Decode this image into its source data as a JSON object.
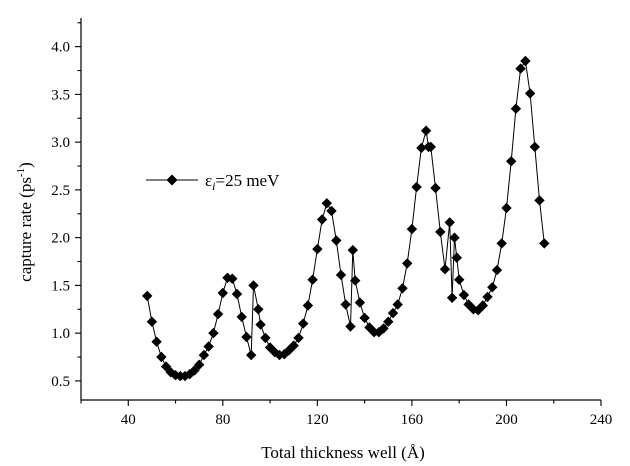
{
  "chart_data": {
    "type": "line",
    "title": "",
    "xlabel": "Total thickness well (Å)",
    "ylabel": "capture rate (ps",
    "ylabel_sup": "-1",
    "ylabel_close": ")",
    "xlim": [
      20,
      240
    ],
    "ylim": [
      0.3,
      4.3
    ],
    "xticks": [
      40,
      80,
      120,
      160,
      200,
      240
    ],
    "yticks": [
      0.5,
      1.0,
      1.5,
      2.0,
      2.5,
      3.0,
      3.5,
      4.0
    ],
    "xtick_labels": [
      "40",
      "80",
      "120",
      "160",
      "200",
      "240"
    ],
    "ytick_labels": [
      "0.5",
      "1.0",
      "1.5",
      "2.0",
      "2.5",
      "3.0",
      "3.5",
      "4.0"
    ],
    "grid": false,
    "legend_position": "left",
    "marker": "diamond",
    "color": "#000000",
    "series": [
      {
        "name": "ε_i=25 meV",
        "legend_symbol": "ε",
        "legend_subscript": "i",
        "legend_rest": "=25 meV",
        "x": [
          48,
          50,
          52,
          54,
          56,
          58,
          60,
          62,
          64,
          66,
          68,
          70,
          72,
          74,
          76,
          78,
          80,
          82,
          84,
          86,
          88,
          90,
          92,
          93,
          95,
          96,
          98,
          100,
          102,
          104,
          106,
          108,
          110,
          112,
          114,
          116,
          118,
          120,
          122,
          124,
          126,
          128,
          130,
          132,
          134,
          135,
          136,
          138,
          140,
          142,
          144,
          146,
          148,
          150,
          152,
          154,
          156,
          158,
          160,
          162,
          164,
          166,
          167,
          168,
          170,
          172,
          174,
          176,
          177,
          178,
          179,
          180,
          182,
          184,
          186,
          188,
          190,
          192,
          194,
          196,
          198,
          200,
          202,
          204,
          206,
          208,
          210,
          212,
          214,
          216
        ],
        "y": [
          1.39,
          1.12,
          0.91,
          0.75,
          0.65,
          0.59,
          0.56,
          0.55,
          0.55,
          0.57,
          0.61,
          0.67,
          0.77,
          0.86,
          1.0,
          1.2,
          1.42,
          1.58,
          1.57,
          1.41,
          1.17,
          0.96,
          0.77,
          1.5,
          1.25,
          1.09,
          0.95,
          0.85,
          0.8,
          0.77,
          0.78,
          0.82,
          0.87,
          0.95,
          1.1,
          1.29,
          1.56,
          1.88,
          2.19,
          2.36,
          2.28,
          1.97,
          1.61,
          1.3,
          1.07,
          1.87,
          1.55,
          1.32,
          1.16,
          1.06,
          1.01,
          1.01,
          1.05,
          1.12,
          1.21,
          1.3,
          1.47,
          1.73,
          2.09,
          2.53,
          2.94,
          3.12,
          2.95,
          2.95,
          2.52,
          2.06,
          1.67,
          2.16,
          1.37,
          2.0,
          1.79,
          1.56,
          1.4,
          1.3,
          1.25,
          1.24,
          1.29,
          1.38,
          1.48,
          1.66,
          1.94,
          2.31,
          2.8,
          3.35,
          3.77,
          3.85,
          3.51,
          2.95,
          2.39,
          1.94
        ]
      }
    ]
  }
}
